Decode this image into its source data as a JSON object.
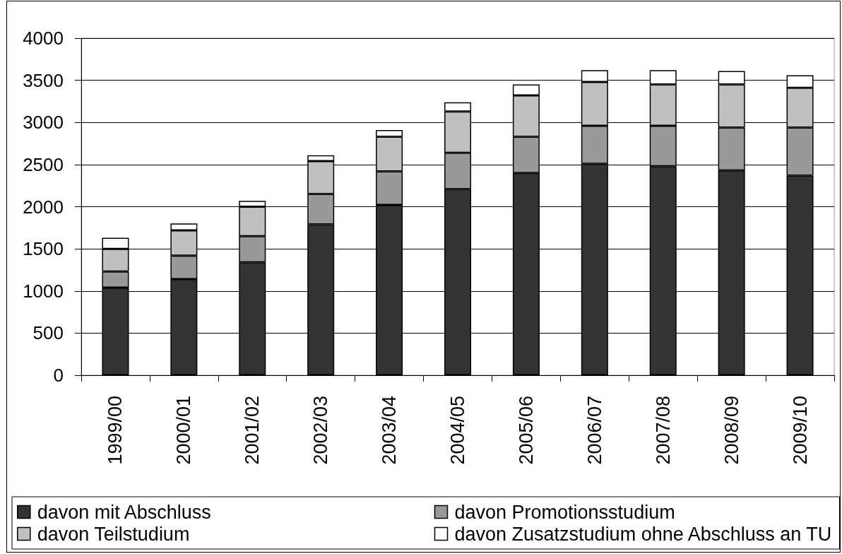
{
  "chart_data": {
    "type": "bar",
    "stacked": true,
    "categories": [
      "1999/00",
      "2000/01",
      "2001/02",
      "2002/03",
      "2003/04",
      "2004/05",
      "2005/06",
      "2006/07",
      "2007/08",
      "2008/09",
      "2009/10"
    ],
    "series": [
      {
        "name": "davon mit Abschluss",
        "color": "#333333",
        "values": [
          1040,
          1140,
          1340,
          1790,
          2020,
          2210,
          2400,
          2510,
          2480,
          2430,
          2370
        ]
      },
      {
        "name": "davon Promotionsstudium",
        "color": "#999999",
        "values": [
          190,
          280,
          310,
          360,
          400,
          430,
          430,
          450,
          480,
          510,
          570
        ]
      },
      {
        "name": "davon Teilstudium",
        "color": "#c0c0c0",
        "values": [
          270,
          300,
          350,
          390,
          410,
          490,
          490,
          520,
          490,
          510,
          470
        ]
      },
      {
        "name": "davon Zusatzstudium ohne Abschluss an TU",
        "color": "#ffffff",
        "values": [
          130,
          80,
          70,
          70,
          80,
          110,
          130,
          140,
          170,
          160,
          150
        ]
      }
    ],
    "ylim": [
      0,
      4000
    ],
    "yticks": [
      0,
      500,
      1000,
      1500,
      2000,
      2500,
      3000,
      3500,
      4000
    ],
    "grid": "y",
    "legend": "bottom"
  }
}
